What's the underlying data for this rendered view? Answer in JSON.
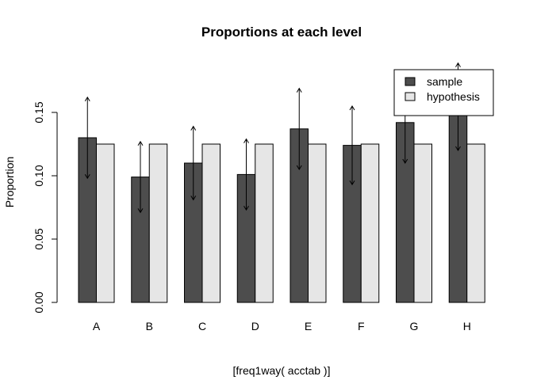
{
  "chart_data": {
    "type": "bar",
    "title": "Proportions at each level",
    "xlabel": "[freq1way( acctab )]",
    "ylabel": "Proportion",
    "categories": [
      "A",
      "B",
      "C",
      "D",
      "E",
      "F",
      "G",
      "H"
    ],
    "series": [
      {
        "name": "sample",
        "color": "#4d4d4d",
        "values": [
          0.13,
          0.099,
          0.11,
          0.101,
          0.137,
          0.124,
          0.142,
          0.155
        ],
        "ci_lower": [
          0.098,
          0.071,
          0.081,
          0.073,
          0.105,
          0.093,
          0.11,
          0.12
        ],
        "ci_upper": [
          0.162,
          0.127,
          0.139,
          0.129,
          0.169,
          0.155,
          0.174,
          0.189
        ]
      },
      {
        "name": "hypothesis",
        "color": "#e6e6e6",
        "values": [
          0.125,
          0.125,
          0.125,
          0.125,
          0.125,
          0.125,
          0.125,
          0.125
        ]
      }
    ],
    "y_ticks": [
      "0.00",
      "0.05",
      "0.10",
      "0.15"
    ],
    "ylim": [
      0,
      0.15
    ],
    "grid": false,
    "legend_position": "top-right"
  }
}
